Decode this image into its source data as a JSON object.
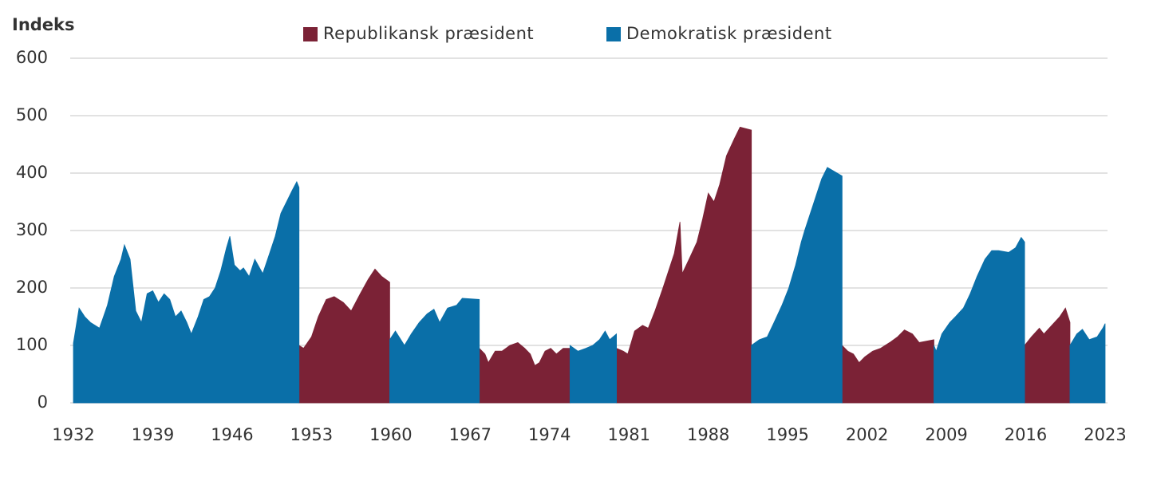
{
  "chart_data": {
    "type": "area",
    "y_label": "Indeks",
    "legend": "top",
    "grid": true,
    "xlim": [
      1932,
      2023
    ],
    "xticks": [
      1932,
      1939,
      1946,
      1953,
      1960,
      1967,
      1974,
      1981,
      1988,
      1995,
      2002,
      2009,
      2016,
      2023
    ],
    "ylim": [
      0,
      600
    ],
    "yticks": [
      0,
      100,
      200,
      300,
      400,
      500,
      600
    ],
    "series": [
      {
        "name": "Republikansk præsident",
        "color": "#7b2236",
        "x": [
          1951.9,
          1952.3,
          1953.0,
          1953.6,
          1954.3,
          1955.0,
          1955.8,
          1956.5,
          1957.3,
          1958.0,
          1958.6,
          1959.2,
          1959.9,
          null,
          1967.8,
          1968.3,
          1968.6,
          1969.2,
          1969.8,
          1970.5,
          1971.2,
          1971.8,
          1972.3,
          1972.7,
          1973.1,
          1973.6,
          1974.1,
          1974.6,
          1975.2,
          1975.8,
          null,
          1979.9,
          1980.5,
          1980.9,
          1981.5,
          1982.2,
          1982.7,
          1983.3,
          1984.0,
          1984.5,
          1985.0,
          1985.5,
          1985.7,
          1986.3,
          1987.0,
          1987.5,
          1988.0,
          1988.5,
          1989.0,
          1989.6,
          1990.3,
          1990.8,
          1991.8,
          null,
          1999.8,
          2000.3,
          2000.8,
          2001.3,
          2001.8,
          2002.5,
          2003.2,
          2004.0,
          2004.7,
          2005.3,
          2006.0,
          2006.6,
          2007.9,
          null,
          2015.9,
          2016.5,
          2017.2,
          2017.6,
          2018.3,
          2019.0,
          2019.5,
          2019.9
        ],
        "values": [
          100,
          95,
          115,
          150,
          180,
          185,
          175,
          160,
          190,
          215,
          233,
          220,
          210,
          null,
          95,
          85,
          70,
          90,
          90,
          100,
          105,
          95,
          85,
          65,
          70,
          90,
          95,
          85,
          95,
          95,
          null,
          95,
          90,
          85,
          125,
          135,
          130,
          160,
          200,
          230,
          260,
          315,
          225,
          250,
          280,
          320,
          365,
          350,
          380,
          430,
          460,
          480,
          475,
          null,
          100,
          90,
          85,
          70,
          80,
          90,
          95,
          105,
          115,
          127,
          120,
          105,
          110,
          null,
          100,
          115,
          130,
          120,
          135,
          150,
          165,
          140
        ]
      },
      {
        "name": "Demokratisk præsident",
        "color": "#0a6fa8",
        "x": [
          1932.0,
          1932.5,
          1933.0,
          1933.5,
          1934.3,
          1935.0,
          1935.6,
          1936.2,
          1936.5,
          1937.0,
          1937.5,
          1938.0,
          1938.5,
          1939.0,
          1939.5,
          1940.0,
          1940.5,
          1941.0,
          1941.5,
          1942.0,
          1942.4,
          1943.0,
          1943.5,
          1944.0,
          1944.5,
          1945.0,
          1945.5,
          1945.8,
          1946.2,
          1946.7,
          1947.0,
          1947.5,
          1948.0,
          1948.7,
          1949.3,
          1949.8,
          1950.3,
          1950.8,
          1951.3,
          1951.7,
          1951.9,
          null,
          1959.9,
          1960.4,
          1961.2,
          1961.8,
          1962.5,
          1963.2,
          1963.8,
          1964.3,
          1965.0,
          1965.8,
          1966.3,
          1967.8,
          null,
          1975.8,
          1976.5,
          1977.2,
          1977.8,
          1978.4,
          1978.9,
          1979.3,
          1979.9,
          null,
          1991.8,
          1992.5,
          1993.2,
          1993.8,
          1994.5,
          1995.1,
          1995.7,
          1996.2,
          1996.5,
          1997.0,
          1997.5,
          1998.0,
          1998.5,
          1999.8,
          null,
          2007.9,
          2008.1,
          2008.6,
          2009.3,
          2009.8,
          2010.5,
          2011.1,
          2011.7,
          2012.4,
          2013.0,
          2013.6,
          2014.5,
          2015.1,
          2015.6,
          2015.9,
          null,
          2019.9,
          2020.5,
          2021.0,
          2021.6,
          2022.3,
          2022.8,
          2023.0
        ],
        "values": [
          104,
          165,
          150,
          140,
          130,
          170,
          220,
          250,
          275,
          250,
          160,
          140,
          190,
          195,
          175,
          190,
          180,
          150,
          160,
          140,
          120,
          150,
          180,
          185,
          200,
          230,
          270,
          290,
          240,
          230,
          235,
          220,
          250,
          225,
          260,
          290,
          330,
          350,
          370,
          385,
          375,
          null,
          110,
          125,
          100,
          120,
          140,
          155,
          163,
          140,
          165,
          170,
          182,
          180,
          null,
          100,
          90,
          95,
          100,
          110,
          125,
          110,
          120,
          null,
          100,
          110,
          115,
          140,
          170,
          200,
          240,
          280,
          300,
          330,
          360,
          390,
          410,
          395,
          null,
          100,
          90,
          120,
          140,
          150,
          165,
          190,
          220,
          250,
          265,
          265,
          262,
          270,
          288,
          280,
          null,
          100,
          120,
          128,
          110,
          115,
          130,
          138
        ]
      }
    ]
  }
}
